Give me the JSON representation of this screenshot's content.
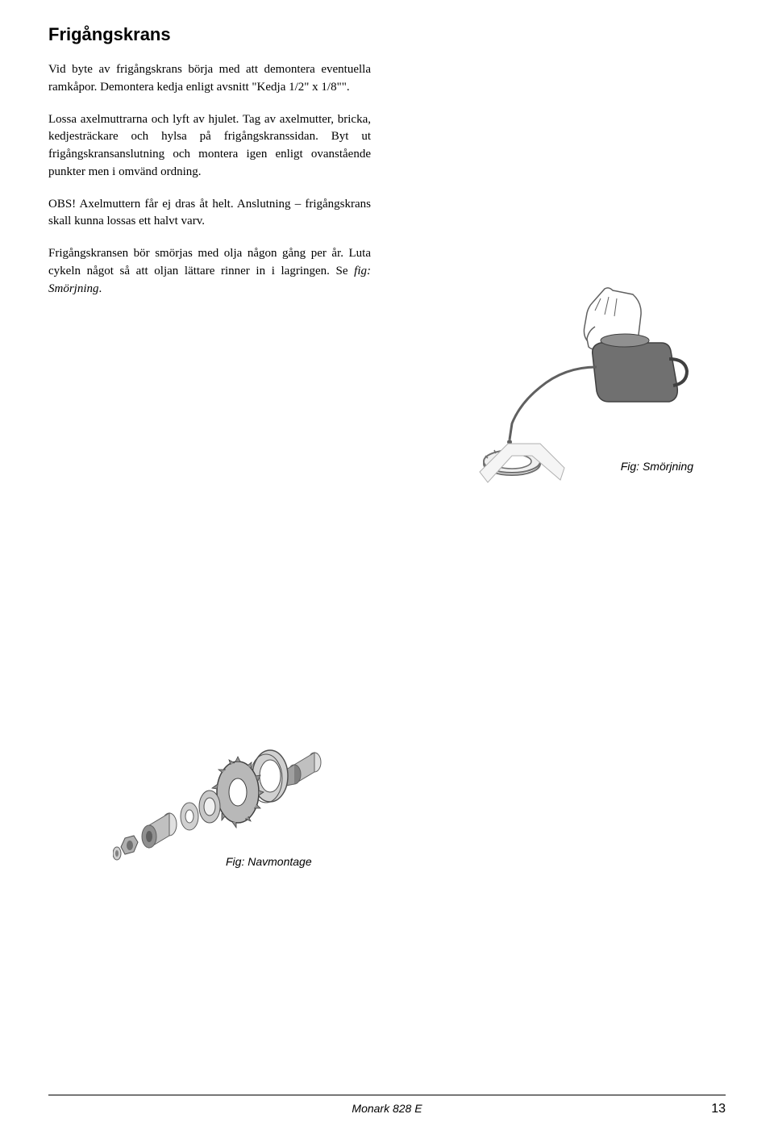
{
  "heading": "Frigångskrans",
  "paragraphs": {
    "p1": "Vid byte av frigångskrans börja med att demontera eventuella ramkåpor. Demontera kedja enligt avsnitt \"Kedja 1/2\" x 1/8\"\".",
    "p2": "Lossa axelmuttrarna och lyft av hjulet. Tag av axelmutter, bricka, kedjesträckare och hylsa på frigångskranssidan. Byt ut frigångskransanslutning och montera igen enligt ovanstående punkter men i omvänd ordning.",
    "p3": "OBS! Axelmuttern får ej dras åt helt. Anslutning – frigångskrans skall kunna lossas ett halvt varv.",
    "p4": "Frigångskransen bör smörjas med olja någon gång per år. Luta cykeln något så att oljan lättare rinner in i lagringen. Se fig: Smörjning."
  },
  "figures": {
    "smorjning_caption": "Fig: Smörjning",
    "navmontage_caption": "Fig: Navmontage"
  },
  "footer": {
    "model": "Monark 828 E",
    "page": "13"
  },
  "colors": {
    "illustration_gray": "#808080",
    "illustration_light": "#d0d0d0",
    "illustration_dark": "#505050",
    "illustration_white": "#ffffff",
    "line": "#404040"
  }
}
